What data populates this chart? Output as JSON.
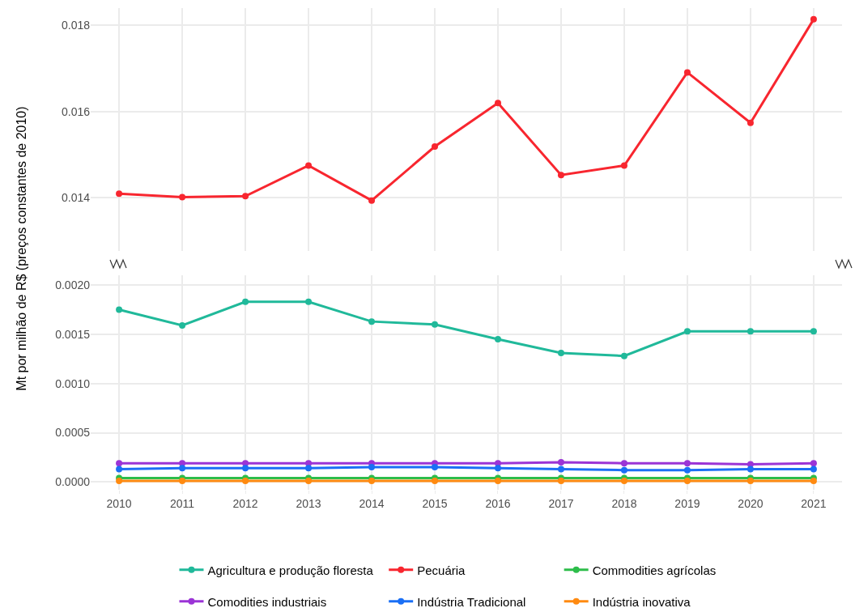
{
  "chart_data": [
    {
      "type": "line",
      "x": [
        2010,
        2011,
        2012,
        2013,
        2014,
        2015,
        2016,
        2017,
        2018,
        2019,
        2020,
        2021
      ],
      "xlim": [
        2009.55,
        2021.45
      ],
      "xticks": [
        2010,
        2011,
        2012,
        2013,
        2014,
        2015,
        2016,
        2017,
        2018,
        2019,
        2020,
        2021
      ],
      "ylim": [
        0.01277,
        0.0184
      ],
      "yticks": [
        0.014,
        0.016,
        0.018
      ],
      "tick_labels": "y",
      "grid": true,
      "marker": "circle",
      "line_style": "solid",
      "series": [
        {
          "name": "Pecuária",
          "color": "#f8262f",
          "values": [
            0.0141,
            0.01402,
            0.01404,
            0.01475,
            0.01394,
            0.01519,
            0.0162,
            0.01453,
            0.01475,
            0.01691,
            0.01574,
            0.01814
          ]
        }
      ]
    },
    {
      "type": "line",
      "ylabel": "Mt por milhão de R$ (preços constantes de 2010)",
      "x": [
        2010,
        2011,
        2012,
        2013,
        2014,
        2015,
        2016,
        2017,
        2018,
        2019,
        2020,
        2021
      ],
      "xlim": [
        2009.55,
        2021.45
      ],
      "xticks": [
        2010,
        2011,
        2012,
        2013,
        2014,
        2015,
        2016,
        2017,
        2018,
        2019,
        2020,
        2021
      ],
      "ylim": [
        -8e-05,
        0.0021
      ],
      "yticks": [
        {
          "value": 0,
          "label": "0.0000"
        },
        0.0005,
        {
          "value": 0.001,
          "label": "0.0010"
        },
        0.0015,
        {
          "value": 0.002,
          "label": "0.0020"
        }
      ],
      "grid": true,
      "legend": "bottom",
      "marker": "circle",
      "line_style": "solid",
      "series": [
        {
          "name": "Agricultura e produção floresta",
          "color": "#20b99a",
          "values": [
            0.00175,
            0.00159,
            0.00183,
            0.00183,
            0.00163,
            0.0016,
            0.00145,
            0.00131,
            0.00128,
            0.00153,
            0.00153,
            0.00153
          ]
        },
        {
          "name": "Commodities agrícolas",
          "color": "#2dbd4a",
          "values": [
            4e-05,
            4e-05,
            4e-05,
            4e-05,
            4e-05,
            4e-05,
            4e-05,
            4e-05,
            4e-05,
            4e-05,
            4e-05,
            4e-05
          ]
        },
        {
          "name": "Comodities industriais",
          "color": "#9b34d6",
          "values": [
            0.00019,
            0.00019,
            0.00019,
            0.00019,
            0.00019,
            0.00019,
            0.00019,
            0.0002,
            0.00019,
            0.00019,
            0.00018,
            0.00019
          ]
        },
        {
          "name": "Indústria Tradicional",
          "color": "#1a6ff5",
          "values": [
            0.00013,
            0.00014,
            0.00014,
            0.00014,
            0.00015,
            0.00015,
            0.00014,
            0.00013,
            0.00012,
            0.00012,
            0.00013,
            0.00013
          ]
        },
        {
          "name": "Indústria inovativa",
          "color": "#ff8a10",
          "values": [
            1e-05,
            1e-05,
            1e-05,
            1e-05,
            1e-05,
            1e-05,
            1e-05,
            1e-05,
            1e-05,
            1e-05,
            1e-05,
            1e-05
          ]
        }
      ]
    }
  ]
}
